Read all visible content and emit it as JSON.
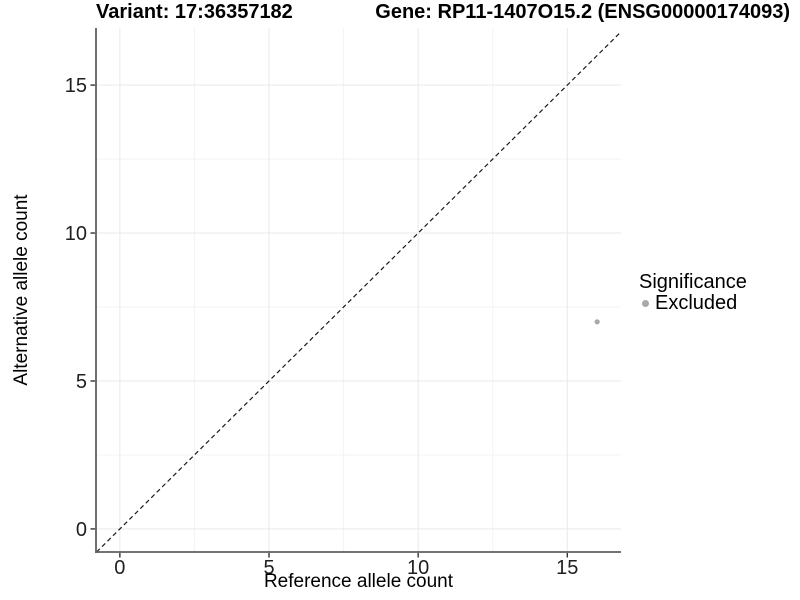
{
  "chart_data": {
    "type": "scatter",
    "title_left": "Variant: 17:36357182",
    "title_right": "Gene: RP11-1407O15.2 (ENSG00000174093)",
    "xlabel": "Reference allele count",
    "ylabel": "Alternative allele count",
    "xlim": [
      -0.8,
      16.8
    ],
    "ylim": [
      -0.78,
      16.93
    ],
    "x_ticks": [
      0,
      5,
      10,
      15
    ],
    "y_ticks": [
      0,
      5,
      10,
      15
    ],
    "x_minor_ticks": [
      2.5,
      7.5,
      12.5
    ],
    "y_minor_ticks": [
      2.5,
      7.5,
      12.5
    ],
    "grid": true,
    "points": [
      {
        "x": 16,
        "y": 7,
        "significance": "Excluded"
      }
    ],
    "reference_line": {
      "equation": "y = x",
      "style": "dashed",
      "color": "#1a1a1a"
    },
    "legend": {
      "title": "Significance",
      "position": "right",
      "entries": [
        {
          "label": "Excluded",
          "color": "#a8a8a8"
        }
      ]
    },
    "colors": {
      "background": "#ffffff",
      "grid_major": "#e9e9e9",
      "grid_minor": "#f3f3f3",
      "axis_line": "#5f5f5f",
      "tick_mark": "#333333",
      "tick_label": "#1f1f1f"
    }
  }
}
